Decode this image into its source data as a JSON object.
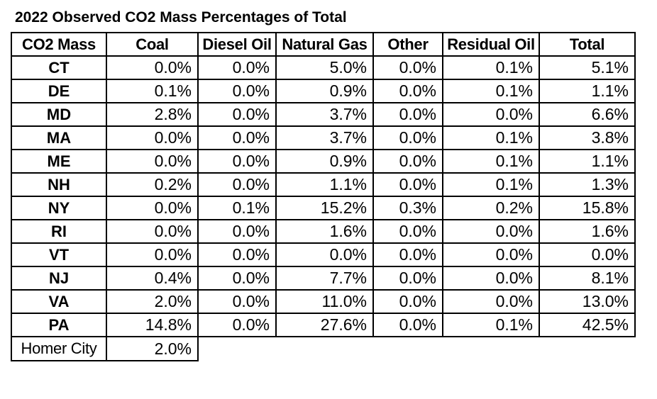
{
  "title": "2022 Observed CO2 Mass Percentages of Total",
  "table": {
    "columns": [
      "CO2 Mass",
      "Coal",
      "Diesel Oil",
      "Natural Gas",
      "Other",
      "Residual Oil",
      "Total"
    ],
    "rows": [
      {
        "label": "CT",
        "values": [
          "0.0%",
          "0.0%",
          "5.0%",
          "0.0%",
          "0.1%",
          "5.1%"
        ]
      },
      {
        "label": "DE",
        "values": [
          "0.1%",
          "0.0%",
          "0.9%",
          "0.0%",
          "0.1%",
          "1.1%"
        ]
      },
      {
        "label": "MD",
        "values": [
          "2.8%",
          "0.0%",
          "3.7%",
          "0.0%",
          "0.0%",
          "6.6%"
        ]
      },
      {
        "label": "MA",
        "values": [
          "0.0%",
          "0.0%",
          "3.7%",
          "0.0%",
          "0.1%",
          "3.8%"
        ]
      },
      {
        "label": "ME",
        "values": [
          "0.0%",
          "0.0%",
          "0.9%",
          "0.0%",
          "0.1%",
          "1.1%"
        ]
      },
      {
        "label": "NH",
        "values": [
          "0.2%",
          "0.0%",
          "1.1%",
          "0.0%",
          "0.1%",
          "1.3%"
        ]
      },
      {
        "label": "NY",
        "values": [
          "0.0%",
          "0.1%",
          "15.2%",
          "0.3%",
          "0.2%",
          "15.8%"
        ]
      },
      {
        "label": "RI",
        "values": [
          "0.0%",
          "0.0%",
          "1.6%",
          "0.0%",
          "0.0%",
          "1.6%"
        ]
      },
      {
        "label": "VT",
        "values": [
          "0.0%",
          "0.0%",
          "0.0%",
          "0.0%",
          "0.0%",
          "0.0%"
        ]
      },
      {
        "label": "NJ",
        "values": [
          "0.4%",
          "0.0%",
          "7.7%",
          "0.0%",
          "0.0%",
          "8.1%"
        ]
      },
      {
        "label": "VA",
        "values": [
          "2.0%",
          "0.0%",
          "11.0%",
          "0.0%",
          "0.0%",
          "13.0%"
        ]
      },
      {
        "label": "PA",
        "values": [
          "14.8%",
          "0.0%",
          "27.6%",
          "0.0%",
          "0.1%",
          "42.5%"
        ]
      },
      {
        "label": "Homer City",
        "values": [
          "2.0%"
        ]
      }
    ]
  },
  "colors": {
    "text": "#000000",
    "border": "#000000",
    "background": "#ffffff"
  }
}
